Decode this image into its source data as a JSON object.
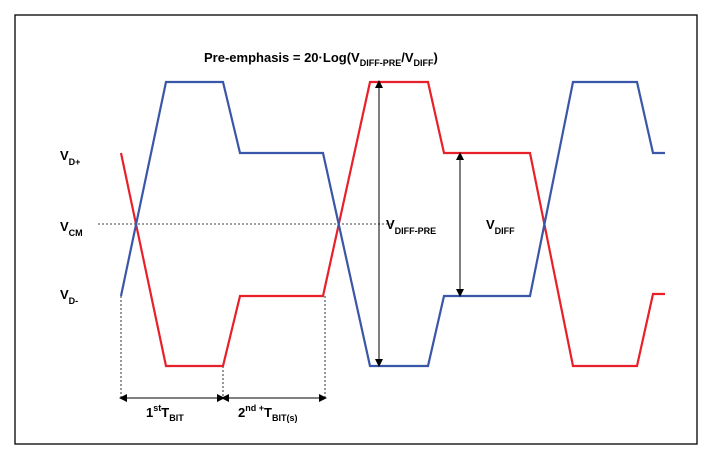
{
  "title": {
    "text": "Pre-emphasis = 20",
    "dot": "·",
    "log": "Log(V",
    "sub1": "DIFF-PRE",
    "slash": "/V",
    "sub2": "DIFF",
    "close": ")"
  },
  "labels": {
    "vdp": {
      "main": "V",
      "sub": "D+"
    },
    "vcm": {
      "main": "V",
      "sub": "CM"
    },
    "vdm": {
      "main": "V",
      "sub": "D-"
    },
    "vdiff_pre": {
      "main": "V",
      "sub": "DIFF-PRE"
    },
    "vdiff": {
      "main": "V",
      "sub": "DIFF"
    }
  },
  "bit_labels": {
    "first": {
      "num": "1",
      "sup": "st",
      "main": "T",
      "sub": "BIT"
    },
    "second": {
      "num": "2",
      "sup": "nd",
      "plus": " +",
      "main": "T",
      "sub": "BIT(s)"
    }
  },
  "colors": {
    "red": "#e8202a",
    "blue": "#3a56a8",
    "frame": "#000000"
  }
}
